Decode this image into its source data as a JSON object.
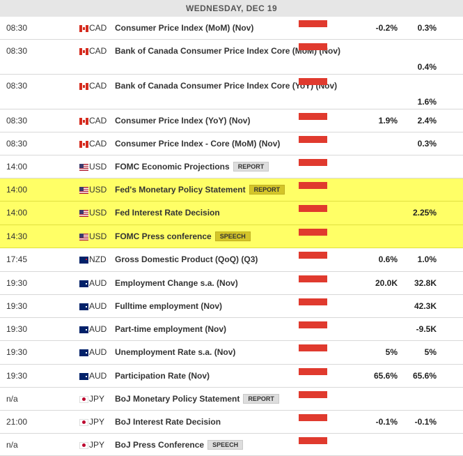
{
  "header": "WEDNESDAY, DEC 19",
  "colors": {
    "impact_high": "#e03a2e",
    "highlight": "#ffff66"
  },
  "events": [
    {
      "time": "08:30",
      "flag": "canada-flag-icon",
      "currency": "CAD",
      "event": "Consumer Price Index (MoM) (Nov)",
      "badge": "",
      "impact": "high",
      "actual": "-0.2%",
      "forecast": "",
      "previous": "0.3%",
      "highlight": false
    },
    {
      "time": "08:30",
      "flag": "canada-flag-icon",
      "currency": "CAD",
      "event": "Bank of Canada Consumer Price Index Core (MoM) (Nov)",
      "badge": "",
      "impact": "high",
      "actual": "",
      "forecast": "",
      "previous": "0.4%",
      "highlight": false
    },
    {
      "time": "08:30",
      "flag": "canada-flag-icon",
      "currency": "CAD",
      "event": "Bank of Canada Consumer Price Index Core (YoY) (Nov)",
      "badge": "",
      "impact": "high",
      "actual": "",
      "forecast": "",
      "previous": "1.6%",
      "highlight": false
    },
    {
      "time": "08:30",
      "flag": "canada-flag-icon",
      "currency": "CAD",
      "event": "Consumer Price Index (YoY) (Nov)",
      "badge": "",
      "impact": "high",
      "actual": "1.9%",
      "forecast": "",
      "previous": "2.4%",
      "highlight": false
    },
    {
      "time": "08:30",
      "flag": "canada-flag-icon",
      "currency": "CAD",
      "event": "Consumer Price Index - Core (MoM) (Nov)",
      "badge": "",
      "impact": "high",
      "actual": "",
      "forecast": "",
      "previous": "0.3%",
      "highlight": false
    },
    {
      "time": "14:00",
      "flag": "usa-flag-icon",
      "currency": "USD",
      "event": "FOMC Economic Projections",
      "badge": "REPORT",
      "impact": "high",
      "actual": "",
      "forecast": "",
      "previous": "",
      "highlight": false
    },
    {
      "time": "14:00",
      "flag": "usa-flag-icon",
      "currency": "USD",
      "event": "Fed's Monetary Policy Statement",
      "badge": "REPORT",
      "impact": "high",
      "actual": "",
      "forecast": "",
      "previous": "",
      "highlight": true
    },
    {
      "time": "14:00",
      "flag": "usa-flag-icon",
      "currency": "USD",
      "event": "Fed Interest Rate Decision",
      "badge": "",
      "impact": "high",
      "actual": "",
      "forecast": "",
      "previous": "2.25%",
      "highlight": true
    },
    {
      "time": "14:30",
      "flag": "usa-flag-icon",
      "currency": "USD",
      "event": "FOMC Press conference",
      "badge": "SPEECH",
      "impact": "high",
      "actual": "",
      "forecast": "",
      "previous": "",
      "highlight": true
    },
    {
      "time": "17:45",
      "flag": "new-zealand-flag-icon",
      "currency": "NZD",
      "event": "Gross Domestic Product (QoQ) (Q3)",
      "badge": "",
      "impact": "high",
      "actual": "0.6%",
      "forecast": "",
      "previous": "1.0%",
      "highlight": false
    },
    {
      "time": "19:30",
      "flag": "australia-flag-icon",
      "currency": "AUD",
      "event": "Employment Change s.a. (Nov)",
      "badge": "",
      "impact": "high",
      "actual": "20.0K",
      "forecast": "",
      "previous": "32.8K",
      "highlight": false
    },
    {
      "time": "19:30",
      "flag": "australia-flag-icon",
      "currency": "AUD",
      "event": "Fulltime employment (Nov)",
      "badge": "",
      "impact": "high",
      "actual": "",
      "forecast": "",
      "previous": "42.3K",
      "highlight": false
    },
    {
      "time": "19:30",
      "flag": "australia-flag-icon",
      "currency": "AUD",
      "event": "Part-time employment (Nov)",
      "badge": "",
      "impact": "high",
      "actual": "",
      "forecast": "",
      "previous": "-9.5K",
      "highlight": false
    },
    {
      "time": "19:30",
      "flag": "australia-flag-icon",
      "currency": "AUD",
      "event": "Unemployment Rate s.a. (Nov)",
      "badge": "",
      "impact": "high",
      "actual": "5%",
      "forecast": "",
      "previous": "5%",
      "highlight": false
    },
    {
      "time": "19:30",
      "flag": "australia-flag-icon",
      "currency": "AUD",
      "event": "Participation Rate (Nov)",
      "badge": "",
      "impact": "high",
      "actual": "65.6%",
      "forecast": "",
      "previous": "65.6%",
      "highlight": false
    },
    {
      "time": "n/a",
      "flag": "japan-flag-icon",
      "currency": "JPY",
      "event": "BoJ Monetary Policy Statement",
      "badge": "REPORT",
      "impact": "high",
      "actual": "",
      "forecast": "",
      "previous": "",
      "highlight": false
    },
    {
      "time": "21:00",
      "flag": "japan-flag-icon",
      "currency": "JPY",
      "event": "BoJ Interest Rate Decision",
      "badge": "",
      "impact": "high",
      "actual": "-0.1%",
      "forecast": "",
      "previous": "-0.1%",
      "highlight": false
    },
    {
      "time": "n/a",
      "flag": "japan-flag-icon",
      "currency": "JPY",
      "event": "BoJ Press Conference",
      "badge": "SPEECH",
      "impact": "high",
      "actual": "",
      "forecast": "",
      "previous": "",
      "highlight": false
    }
  ]
}
